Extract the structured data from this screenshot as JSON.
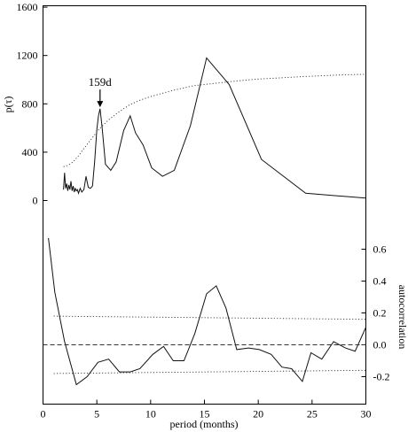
{
  "chart_data": [
    {
      "type": "line",
      "panel": "top",
      "ylabel": "p(τ)",
      "xlabel": "period (months)",
      "xlim": [
        0,
        30
      ],
      "ylim": [
        0,
        1600
      ],
      "xticks": [
        0,
        5,
        10,
        15,
        20,
        25,
        30
      ],
      "yticks": [
        0,
        400,
        800,
        1200,
        1600
      ],
      "grid": false,
      "annotations": [
        {
          "text": "159d",
          "x": 5.3,
          "y": 750,
          "arrow": true
        }
      ],
      "series": [
        {
          "style": "solid",
          "x": [
            1.9,
            2.0,
            2.1,
            2.2,
            2.3,
            2.4,
            2.5,
            2.6,
            2.7,
            2.8,
            2.9,
            3.0,
            3.1,
            3.2,
            3.3,
            3.45,
            3.6,
            3.8,
            4.0,
            4.2,
            4.4,
            4.6,
            4.8,
            5.0,
            5.15,
            5.3,
            5.5,
            5.8,
            6.3,
            6.8,
            7.5,
            8.1,
            8.6,
            9.3,
            10.1,
            11.1,
            12.2,
            13.7,
            15.2,
            17.3,
            20.3,
            24.4,
            30.0
          ],
          "y": [
            90,
            230,
            100,
            140,
            80,
            130,
            90,
            160,
            80,
            120,
            70,
            100,
            80,
            90,
            60,
            100,
            70,
            90,
            200,
            110,
            100,
            120,
            320,
            590,
            700,
            760,
            600,
            300,
            250,
            320,
            580,
            700,
            560,
            460,
            270,
            200,
            250,
            620,
            1180,
            960,
            340,
            60,
            20
          ]
        },
        {
          "style": "dotted",
          "x": [
            1.9,
            2.3,
            2.8,
            3.3,
            3.8,
            4.5,
            5.2,
            6.0,
            7.0,
            8.0,
            9.0,
            10.0,
            12.0,
            14.0,
            16.0,
            18.0,
            20.0,
            22.0,
            24.0,
            26.0,
            28.0,
            30.0
          ],
          "y": [
            280,
            290,
            320,
            370,
            430,
            510,
            590,
            660,
            730,
            790,
            830,
            860,
            910,
            950,
            970,
            990,
            1005,
            1015,
            1025,
            1033,
            1040,
            1045
          ]
        }
      ]
    },
    {
      "type": "line",
      "panel": "bottom",
      "ylabel": "autocorrelation",
      "xlabel": "period (months)",
      "xlim": [
        0,
        30
      ],
      "ylim": [
        -0.25,
        0.72
      ],
      "xticks": [
        0,
        5,
        10,
        15,
        20,
        25,
        30
      ],
      "xtick_labels": [
        "0",
        "5",
        "10",
        "15",
        "20",
        "25",
        "30"
      ],
      "yticks": [
        -0.2,
        0.0,
        0.2,
        0.4,
        0.6
      ],
      "ytick_labels": [
        "-0.2",
        "0.0",
        "0.2",
        "0.4",
        "0.6"
      ],
      "grid": false,
      "series": [
        {
          "style": "solid",
          "x": [
            0.5,
            1.1,
            2.0,
            3.1,
            4.1,
            5.1,
            6.1,
            7.1,
            8.1,
            9.0,
            10.2,
            11.2,
            12.1,
            13.1,
            14.1,
            15.2,
            16.1,
            17.0,
            18.0,
            19.1,
            20.1,
            21.2,
            22.2,
            23.1,
            24.1,
            24.9,
            25.9,
            27.0,
            28.1,
            29.0,
            30.0
          ],
          "y": [
            0.67,
            0.33,
            0.02,
            -0.25,
            -0.2,
            -0.11,
            -0.09,
            -0.17,
            -0.17,
            -0.15,
            -0.06,
            -0.01,
            -0.1,
            -0.1,
            0.07,
            0.32,
            0.37,
            0.23,
            -0.03,
            -0.02,
            -0.03,
            -0.06,
            -0.14,
            -0.15,
            -0.23,
            -0.05,
            -0.09,
            0.02,
            -0.02,
            -0.04,
            0.11
          ]
        },
        {
          "style": "dotted",
          "x": [
            1.0,
            30.0
          ],
          "y": [
            0.18,
            0.16
          ]
        },
        {
          "style": "dotted",
          "x": [
            1.0,
            30.0
          ],
          "y": [
            -0.18,
            -0.16
          ]
        },
        {
          "style": "dashed",
          "x": [
            0.0,
            30.0
          ],
          "y": [
            0.0,
            0.0
          ]
        }
      ]
    }
  ]
}
